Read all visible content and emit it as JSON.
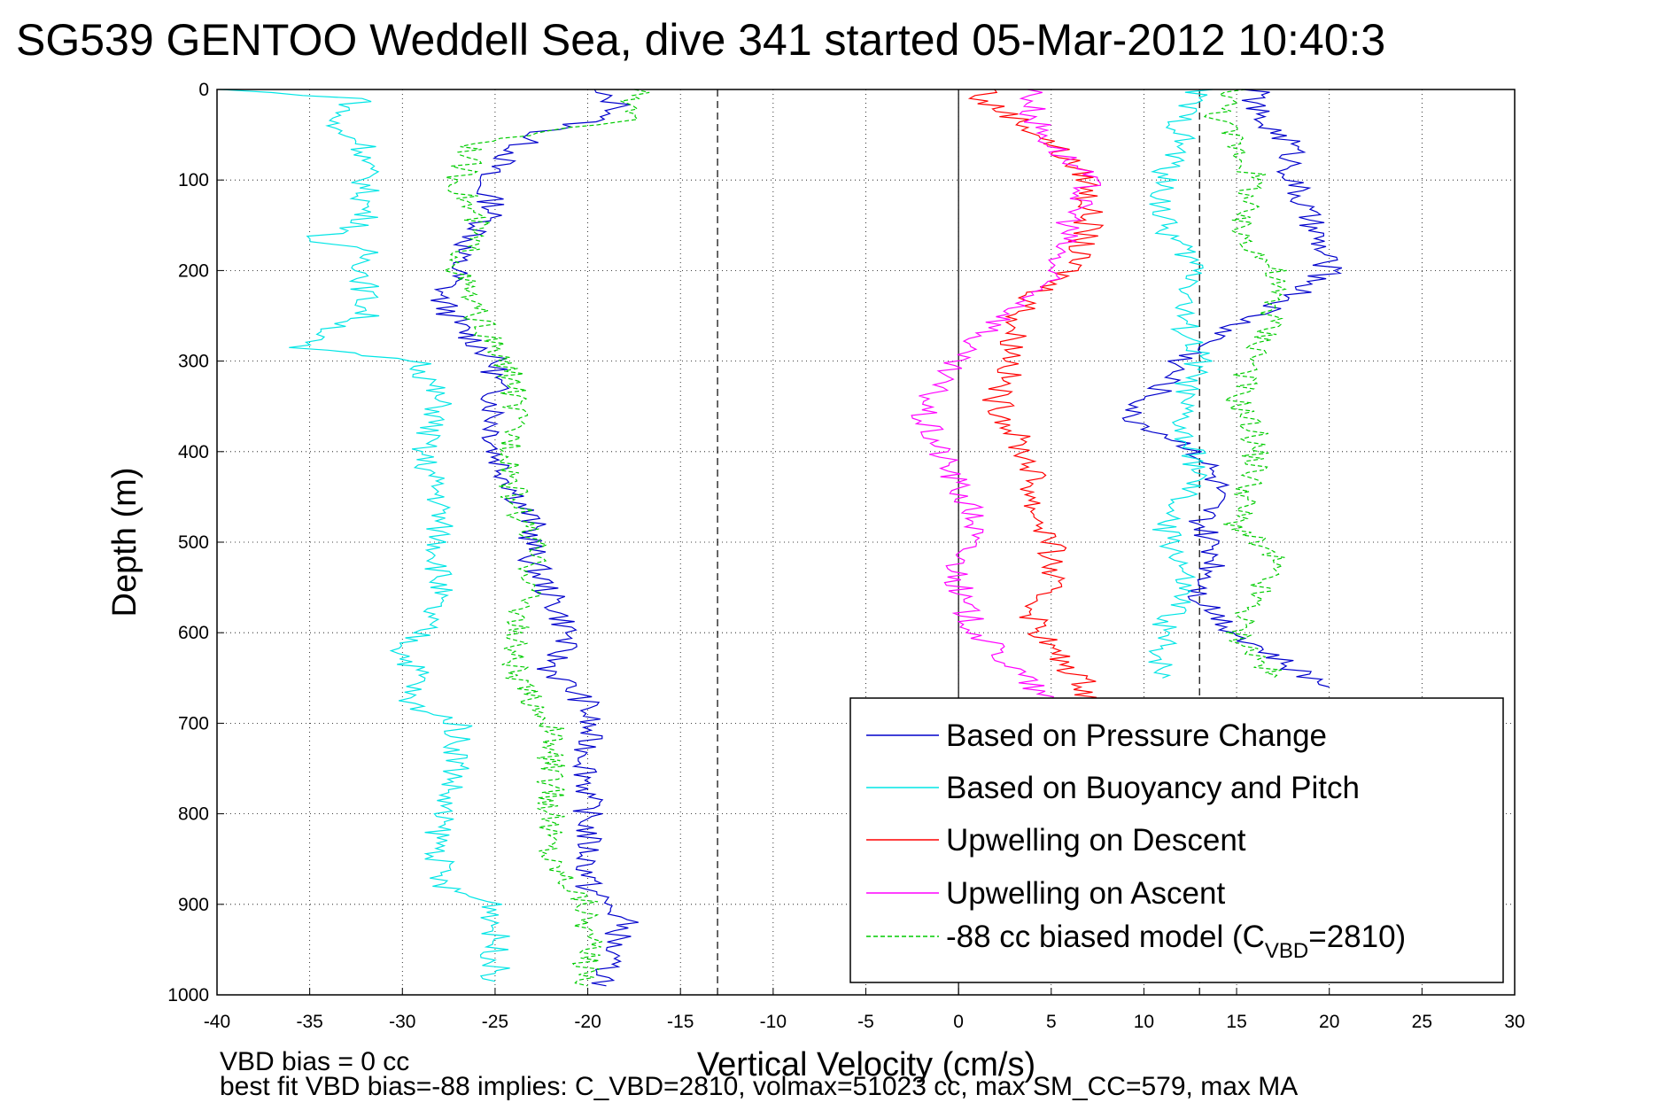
{
  "title": "SG539 GENTOO Weddell Sea, dive 341 started 05-Mar-2012 10:40:3",
  "footer": {
    "line1": "VBD bias = 0 cc",
    "line2": "best fit VBD bias=-88 implies: C_VBD=2810, volmax=51023 cc, max SM_CC=579, max MA"
  },
  "colors": {
    "pressure": "#0000cc",
    "buoyancy": "#00e5e5",
    "upwelling_descent": "#ff0000",
    "upwelling_ascent": "#ff00ff",
    "biased_model": "#00cc00"
  },
  "chart_data": {
    "type": "line",
    "title": "SG539 GENTOO Weddell Sea, dive 341 started 05-Mar-2012 10:40:3",
    "xlabel": "Vertical Velocity (cm/s)",
    "ylabel": "Depth (m)",
    "xlim": [
      -40,
      30
    ],
    "ylim": [
      0,
      1000
    ],
    "y_reversed": true,
    "grid": "dotted",
    "x_ticks": [
      -40,
      -35,
      -30,
      -25,
      -20,
      -15,
      -10,
      -5,
      0,
      5,
      10,
      15,
      20,
      25,
      30
    ],
    "y_ticks": [
      0,
      100,
      200,
      300,
      400,
      500,
      600,
      700,
      800,
      900,
      1000
    ],
    "reference_lines": [
      {
        "x": -13,
        "style": "dashed"
      },
      {
        "x": 0,
        "style": "solid"
      },
      {
        "x": 13,
        "style": "dashed"
      }
    ],
    "legend_position": "bottom-right",
    "series": [
      {
        "name": "Based on Pressure Change",
        "key": "pressure",
        "style": "solid",
        "depth": [
          0,
          10,
          20,
          30,
          50,
          70,
          100,
          130,
          160,
          180,
          200,
          230,
          260,
          280,
          300,
          330,
          360,
          400,
          440,
          480,
          520,
          560,
          600,
          640,
          680,
          720,
          760,
          800,
          840,
          880,
          920,
          960,
          990
        ],
        "velocity": [
          -20,
          -19,
          -18,
          -19,
          -23,
          -24,
          -26,
          -25,
          -26,
          -27,
          -27,
          -28,
          -27,
          -26,
          -25,
          -25,
          -25,
          -25,
          -24,
          -23,
          -23,
          -22,
          -21,
          -22,
          -20,
          -20,
          -20,
          -20,
          -20,
          -20,
          -18,
          -19,
          -19
        ]
      },
      {
        "name": "Based on Buoyancy and Pitch",
        "key": "buoyancy",
        "style": "solid",
        "depth": [
          0,
          10,
          20,
          40,
          60,
          100,
          150,
          165,
          180,
          200,
          250,
          285,
          300,
          350,
          400,
          450,
          500,
          550,
          600,
          620,
          650,
          675,
          700,
          750,
          800,
          850,
          880,
          900,
          950,
          985
        ],
        "velocity": [
          -40,
          -32,
          -33,
          -34,
          -32,
          -32,
          -32,
          -35,
          -32,
          -32,
          -32,
          -36,
          -29,
          -28,
          -29,
          -28,
          -28,
          -28,
          -29,
          -30,
          -29,
          -30,
          -27,
          -27,
          -28,
          -28,
          -28,
          -25,
          -25,
          -25
        ]
      },
      {
        "name": "Upwelling on Descent",
        "key": "upwelling_descent",
        "style": "solid",
        "depth": [
          0,
          10,
          30,
          60,
          100,
          150,
          200,
          230,
          260,
          300,
          340,
          380,
          420,
          460,
          500,
          540,
          580,
          620,
          660,
          680
        ],
        "velocity": [
          2,
          1,
          3,
          5,
          7,
          7,
          6,
          4,
          3,
          3,
          2,
          3,
          4,
          4,
          5,
          5,
          4,
          5,
          7,
          7
        ]
      },
      {
        "name": "Upwelling on Ascent",
        "key": "upwelling_ascent",
        "style": "solid",
        "depth": [
          0,
          10,
          30,
          60,
          100,
          150,
          200,
          230,
          260,
          290,
          320,
          360,
          400,
          440,
          480,
          520,
          560,
          600,
          640,
          680
        ],
        "velocity": [
          4,
          4,
          4,
          5,
          7,
          6,
          5,
          4,
          2,
          0,
          -1,
          -2,
          -1,
          0,
          1,
          0,
          0,
          1,
          3,
          5
        ]
      },
      {
        "name": "-88 cc biased model (C_VBD=2810)",
        "key": "biased_model",
        "style": "dashed",
        "depth": [
          0,
          10,
          30,
          60,
          100,
          150,
          200,
          250,
          290,
          320,
          360,
          400,
          450,
          500,
          550,
          600,
          650,
          700,
          750,
          800,
          850,
          900,
          950,
          990
        ],
        "velocity": [
          -17,
          -18,
          -17,
          -26,
          -27,
          -26,
          -27,
          -26,
          -25,
          -24,
          -24,
          -24,
          -24,
          -23,
          -23,
          -24,
          -24,
          -22,
          -22,
          -22,
          -22,
          -20,
          -20,
          -20
        ]
      },
      {
        "name": "",
        "key": "pressure_ascent",
        "color_key": "pressure",
        "style": "solid",
        "depth": [
          0,
          30,
          60,
          100,
          150,
          200,
          230,
          260,
          300,
          330,
          360,
          400,
          440,
          480,
          520,
          560,
          600,
          640,
          660
        ],
        "velocity": [
          16,
          16,
          18,
          18,
          19,
          20,
          18,
          15,
          12,
          11,
          9,
          13,
          14,
          13,
          14,
          13,
          15,
          18,
          20
        ]
      },
      {
        "name": "",
        "key": "buoyancy_ascent",
        "color_key": "buoyancy",
        "style": "solid",
        "depth": [
          0,
          30,
          60,
          100,
          150,
          200,
          250,
          300,
          340,
          380,
          420,
          480,
          520,
          560,
          600,
          650
        ],
        "velocity": [
          13,
          12,
          12,
          11,
          11,
          13,
          12,
          13,
          12,
          12,
          13,
          11,
          12,
          12,
          11,
          11
        ]
      },
      {
        "name": "",
        "key": "biased_ascent",
        "color_key": "biased_model",
        "style": "dashed",
        "depth": [
          0,
          30,
          60,
          100,
          150,
          200,
          250,
          300,
          340,
          380,
          420,
          480,
          520,
          560,
          600,
          650
        ],
        "velocity": [
          15,
          14,
          15,
          16,
          15,
          17,
          17,
          16,
          15,
          16,
          16,
          15,
          17,
          16,
          15,
          17
        ]
      }
    ],
    "legend": [
      {
        "label": "Based on Pressure Change",
        "key": "pressure",
        "style": "solid"
      },
      {
        "label": "Based on Buoyancy and Pitch",
        "key": "buoyancy",
        "style": "solid"
      },
      {
        "label": "Upwelling on Descent",
        "key": "upwelling_descent",
        "style": "solid"
      },
      {
        "label": "Upwelling on Ascent",
        "key": "upwelling_ascent",
        "style": "solid"
      },
      {
        "label_main": "-88 cc biased model (C",
        "label_sub": "VBD",
        "label_tail": "=2810)",
        "key": "biased_model",
        "style": "dashed"
      }
    ]
  }
}
